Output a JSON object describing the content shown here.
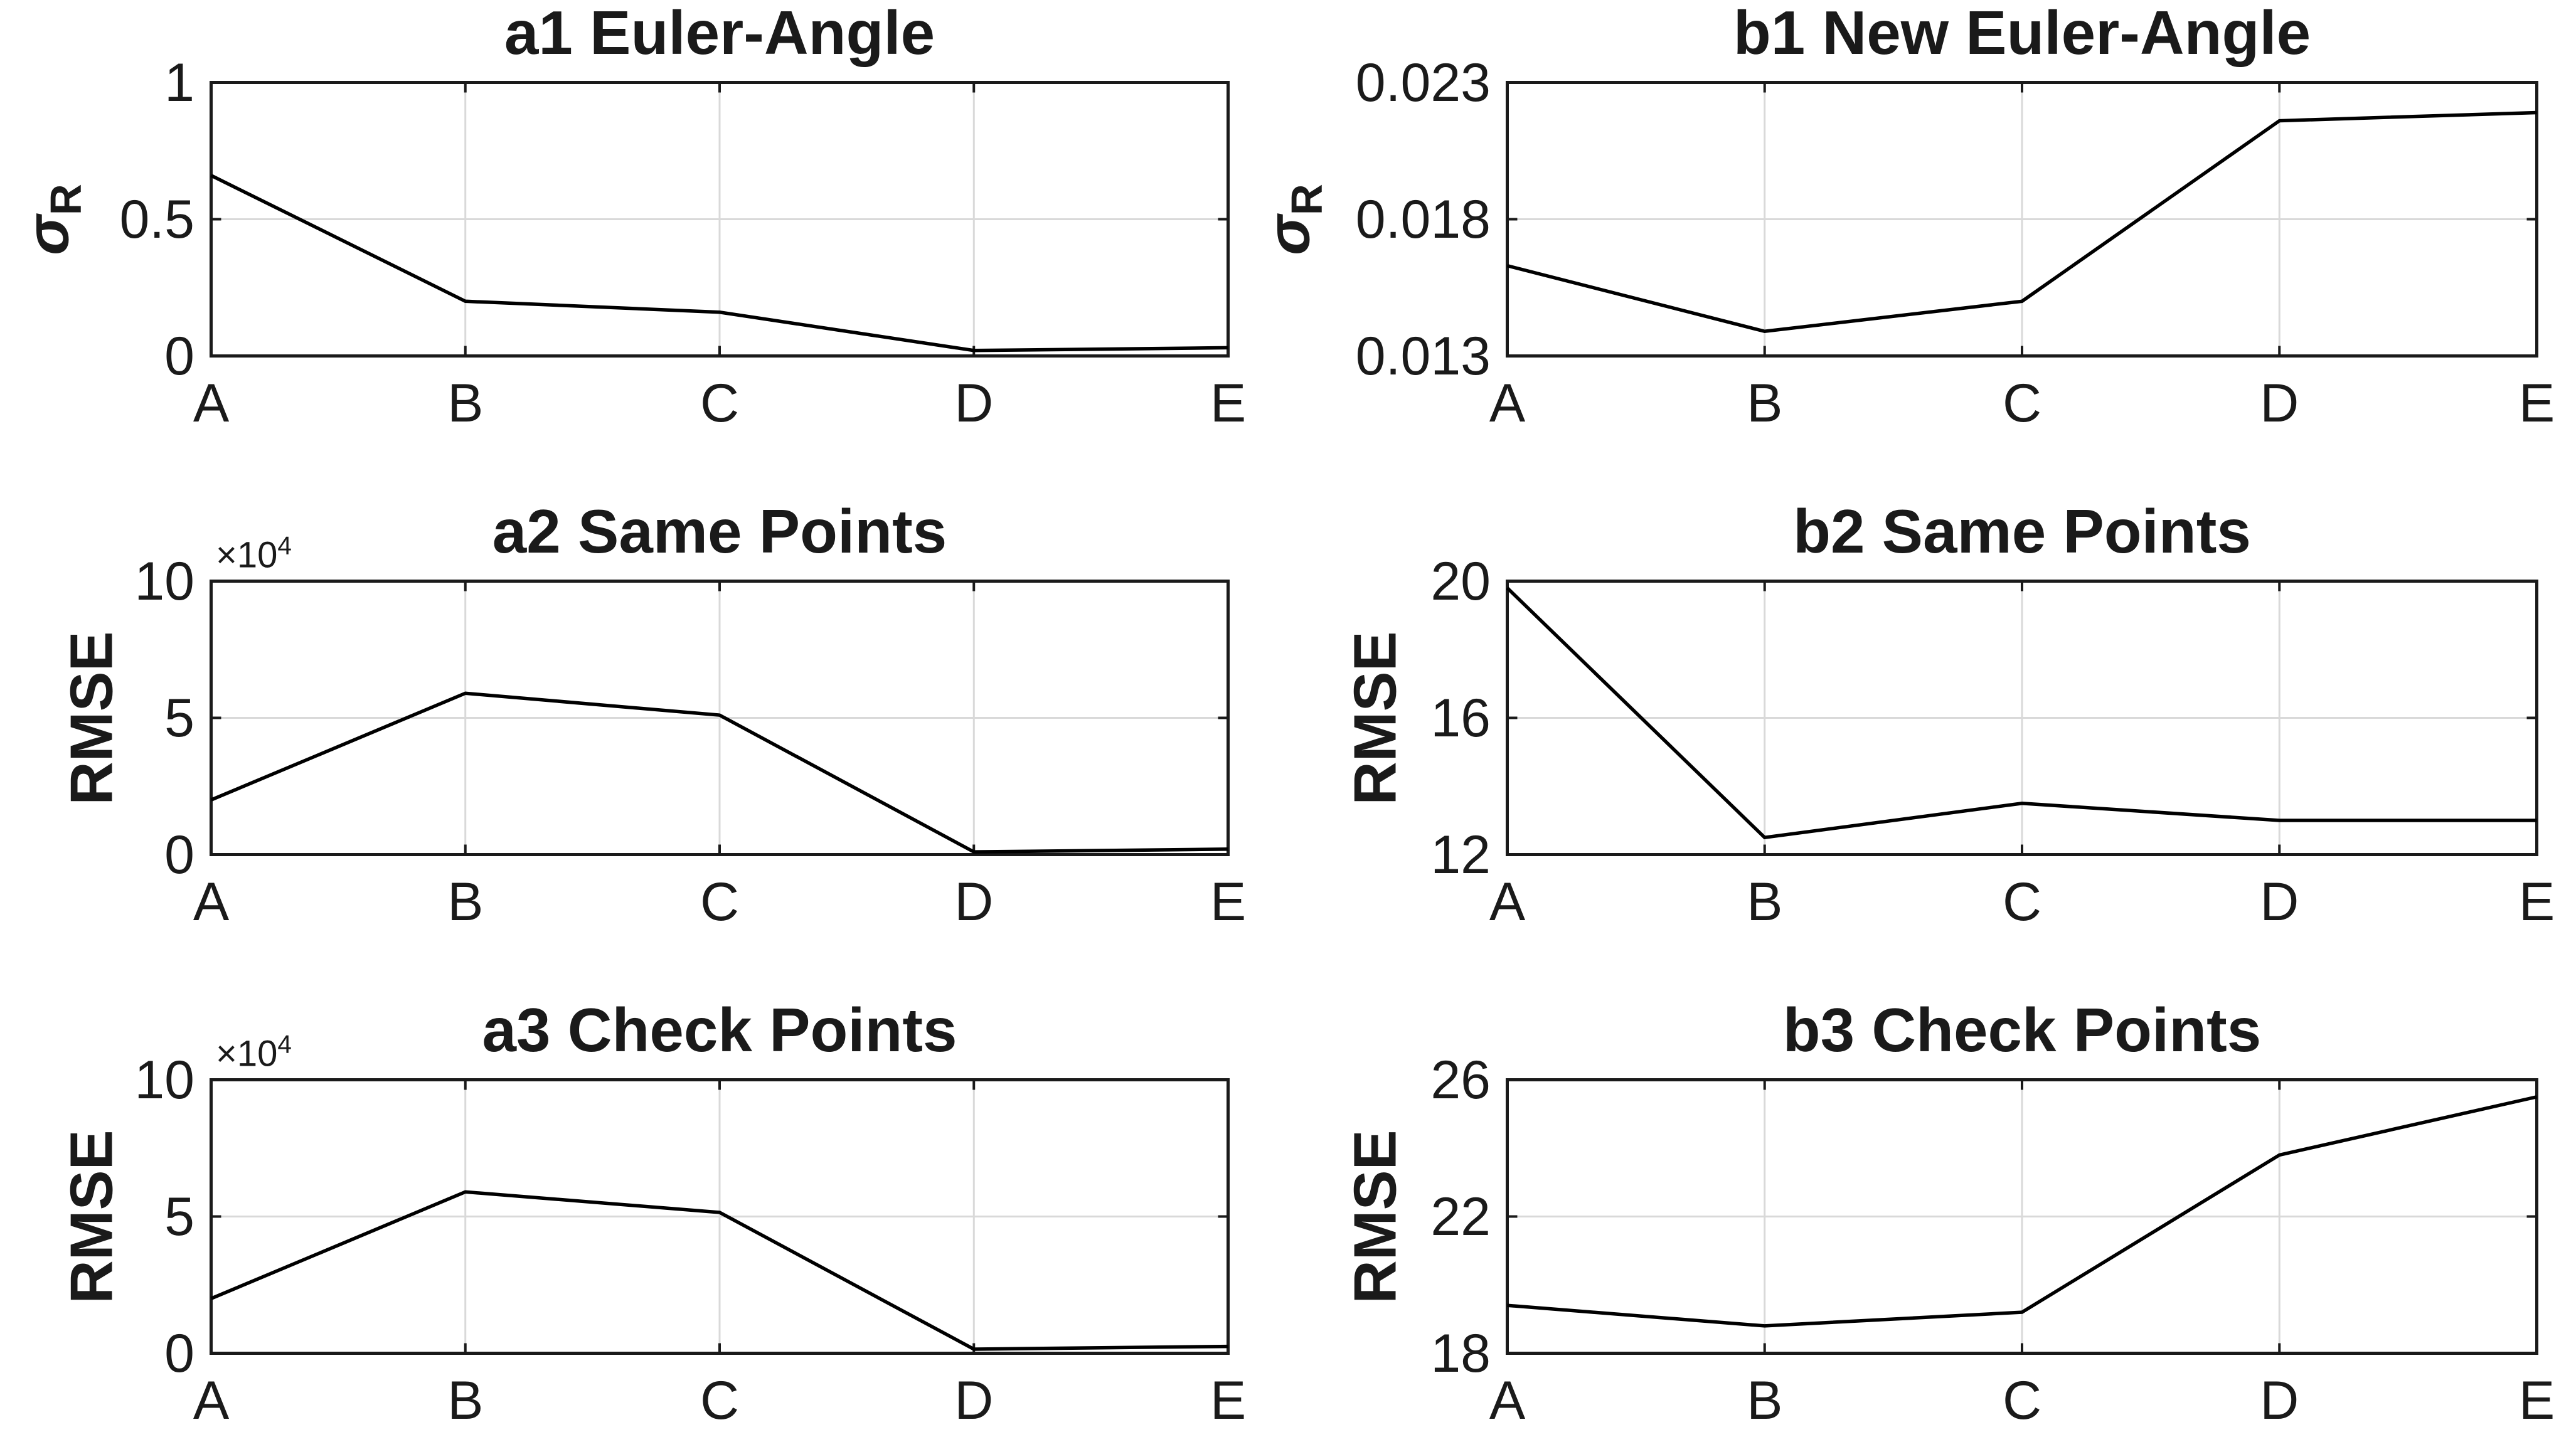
{
  "figure": {
    "background": "#ffffff",
    "axis_color": "#1a1a1a",
    "grid_color": "#d9d9d9",
    "line_color": "#000000"
  },
  "chart_data": [
    {
      "id": "a1",
      "type": "line",
      "title": "a1 Euler-Angle",
      "ylabel_main": "σ",
      "ylabel_sub": "R",
      "exponent_base": null,
      "exponent_sup": null,
      "categories": [
        "A",
        "B",
        "C",
        "D",
        "E"
      ],
      "values": [
        0.66,
        0.2,
        0.16,
        0.02,
        0.03
      ],
      "yticks": [
        0,
        0.5,
        1
      ],
      "ytick_labels": [
        "0",
        "0.5",
        "1"
      ],
      "ylim": [
        0,
        1
      ],
      "grid": true,
      "legend": null
    },
    {
      "id": "b1",
      "type": "line",
      "title": "b1 New Euler-Angle",
      "ylabel_main": "σ",
      "ylabel_sub": "R",
      "exponent_base": null,
      "exponent_sup": null,
      "categories": [
        "A",
        "B",
        "C",
        "D",
        "E"
      ],
      "values": [
        0.0163,
        0.0139,
        0.015,
        0.0216,
        0.0219
      ],
      "yticks": [
        0.013,
        0.018,
        0.023
      ],
      "ytick_labels": [
        "0.013",
        "0.018",
        "0.023"
      ],
      "ylim": [
        0.013,
        0.023
      ],
      "grid": true,
      "legend": null
    },
    {
      "id": "a2",
      "type": "line",
      "title": "a2 Same Points",
      "ylabel_main": "RMSE",
      "ylabel_sub": "",
      "exponent_base": "×10",
      "exponent_sup": "4",
      "categories": [
        "A",
        "B",
        "C",
        "D",
        "E"
      ],
      "values": [
        2.0,
        5.9,
        5.1,
        0.1,
        0.2
      ],
      "yticks": [
        0,
        5,
        10
      ],
      "ytick_labels": [
        "0",
        "5",
        "10"
      ],
      "ylim": [
        0,
        10
      ],
      "grid": true,
      "legend": null
    },
    {
      "id": "b2",
      "type": "line",
      "title": "b2 Same Points",
      "ylabel_main": "RMSE",
      "ylabel_sub": "",
      "exponent_base": null,
      "exponent_sup": null,
      "categories": [
        "A",
        "B",
        "C",
        "D",
        "E"
      ],
      "values": [
        19.8,
        12.5,
        13.5,
        13.0,
        13.0
      ],
      "yticks": [
        12,
        16,
        20
      ],
      "ytick_labels": [
        "12",
        "16",
        "20"
      ],
      "ylim": [
        12,
        20
      ],
      "grid": true,
      "legend": null
    },
    {
      "id": "a3",
      "type": "line",
      "title": "a3 Check Points",
      "ylabel_main": "RMSE",
      "ylabel_sub": "",
      "exponent_base": "×10",
      "exponent_sup": "4",
      "categories": [
        "A",
        "B",
        "C",
        "D",
        "E"
      ],
      "values": [
        2.0,
        5.9,
        5.15,
        0.15,
        0.25
      ],
      "yticks": [
        0,
        5,
        10
      ],
      "ytick_labels": [
        "0",
        "5",
        "10"
      ],
      "ylim": [
        0,
        10
      ],
      "grid": true,
      "legend": null
    },
    {
      "id": "b3",
      "type": "line",
      "title": "b3 Check Points",
      "ylabel_main": "RMSE",
      "ylabel_sub": "",
      "exponent_base": null,
      "exponent_sup": null,
      "categories": [
        "A",
        "B",
        "C",
        "D",
        "E"
      ],
      "values": [
        19.4,
        18.8,
        19.2,
        23.8,
        25.5
      ],
      "yticks": [
        18,
        22,
        26
      ],
      "ytick_labels": [
        "18",
        "22",
        "26"
      ],
      "ylim": [
        18,
        26
      ],
      "grid": true,
      "legend": null
    }
  ]
}
